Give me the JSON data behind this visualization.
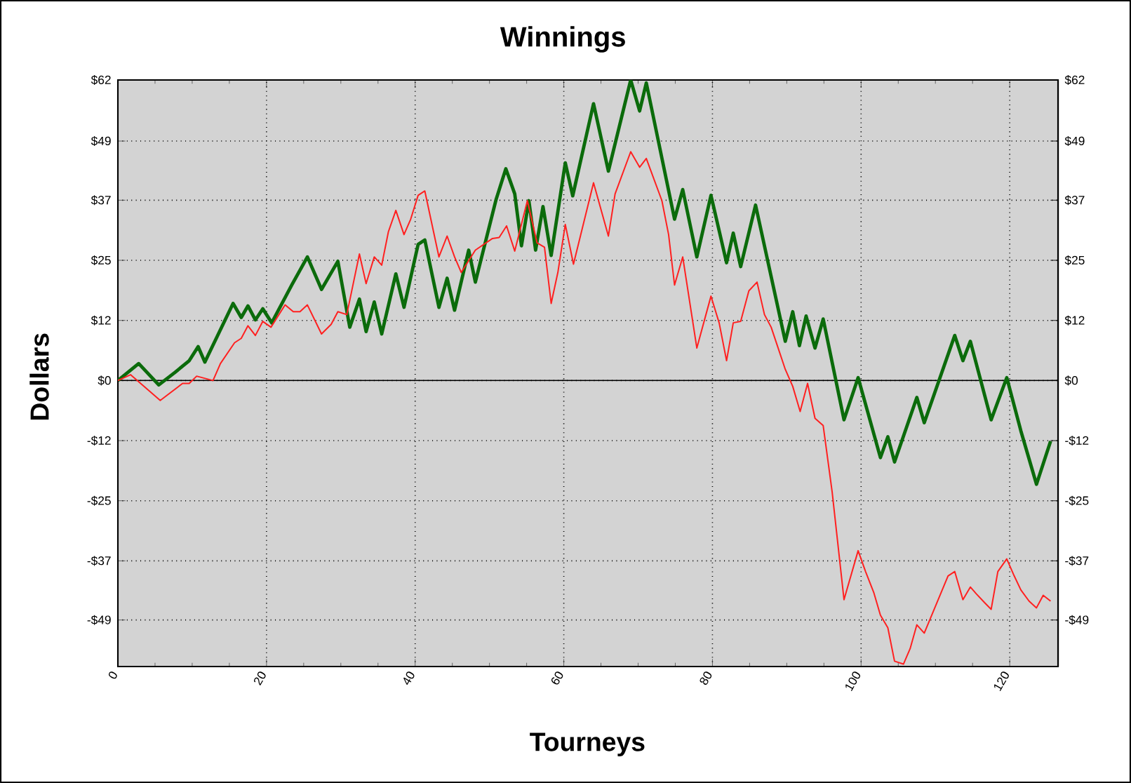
{
  "chart_data": {
    "type": "line",
    "title": "Winnings",
    "xlabel": "Tourneys",
    "ylabel": "Dollars",
    "xlim": [
      0,
      126.5
    ],
    "xticks": [
      0,
      20,
      40,
      60,
      80,
      100,
      120
    ],
    "ylim": [
      -59,
      62
    ],
    "yticks": [
      {
        "value": 62,
        "label": "$62"
      },
      {
        "value": 49.4,
        "label": "$49"
      },
      {
        "value": 37.2,
        "label": "$37"
      },
      {
        "value": 24.8,
        "label": "$25"
      },
      {
        "value": 12.4,
        "label": "$12"
      },
      {
        "value": 0,
        "label": "$0"
      },
      {
        "value": -12.4,
        "label": "-$12"
      },
      {
        "value": -24.8,
        "label": "-$25"
      },
      {
        "value": -37.2,
        "label": "-$37"
      },
      {
        "value": -49.4,
        "label": "-$49"
      }
    ],
    "y2lim": [
      -59,
      62
    ],
    "y2ticks": [
      {
        "value": 62,
        "label": "$62"
      },
      {
        "value": 49.4,
        "label": "$49"
      },
      {
        "value": 37.2,
        "label": "$37"
      },
      {
        "value": 24.8,
        "label": "$25"
      },
      {
        "value": 12.4,
        "label": "$12"
      },
      {
        "value": 0,
        "label": "$0"
      },
      {
        "value": -12.4,
        "label": "-$12"
      },
      {
        "value": -24.8,
        "label": "-$25"
      },
      {
        "value": -37.2,
        "label": "-$37"
      },
      {
        "value": -49.4,
        "label": "-$49"
      }
    ],
    "grid": true,
    "ref_lines": [
      {
        "axis": "y",
        "value": 0,
        "color": "#000000"
      }
    ],
    "series": [
      {
        "color": "#0b6b0b",
        "x": [
          0,
          2.8,
          5.5,
          7.7,
          9.6,
          10.8,
          11.7,
          15.5,
          16.6,
          17.5,
          18.5,
          19.5,
          20.7,
          23.4,
          25.5,
          27.4,
          29.6,
          31.2,
          32.5,
          33.4,
          34.5,
          35.5,
          37.4,
          38.5,
          40.4,
          41.3,
          43.2,
          44.3,
          45.3,
          47.2,
          48.1,
          50.9,
          52.2,
          53.4,
          54.3,
          55.3,
          56.2,
          57.2,
          58.3,
          60.2,
          61.2,
          64,
          66,
          69,
          70.2,
          71.1,
          74.9,
          76,
          77.9,
          79.8,
          81.9,
          82.8,
          83.8,
          85.8,
          89.8,
          90.8,
          91.7,
          92.6,
          93.8,
          94.9,
          97.7,
          99.6,
          102.6,
          103.6,
          104.5,
          107.5,
          108.5,
          112.6,
          113.7,
          114.7,
          117.5,
          119.6,
          121.5,
          123.6,
          125.5
        ],
        "values": [
          0,
          3.5,
          -0.9,
          1.7,
          4.1,
          7.0,
          3.8,
          15.9,
          13.0,
          15.4,
          12.5,
          14.8,
          11.9,
          19.7,
          25.5,
          18.8,
          24.6,
          11,
          16.8,
          10.1,
          16.2,
          9.6,
          22.0,
          15.1,
          28.1,
          29.0,
          15.1,
          21.1,
          14.5,
          26.9,
          20.3,
          37.4,
          43.7,
          38.5,
          27.8,
          37.1,
          26.9,
          35.9,
          25.8,
          44.9,
          38.1,
          57.1,
          43.2,
          62,
          55.6,
          61.4,
          33.3,
          39.4,
          25.5,
          38.2,
          24.3,
          30.4,
          23.5,
          36.2,
          8.1,
          14.2,
          7.2,
          13.3,
          6.7,
          12.7,
          -8.1,
          0.6,
          -15.9,
          -11.6,
          -16.8,
          -3.5,
          -8.7,
          9.3,
          4.1,
          8.1,
          -8.1,
          0.6,
          -10.4,
          -21.4,
          -12.5
        ]
      },
      {
        "color": "#ff2020",
        "x": [
          0,
          1.7,
          5.7,
          8.7,
          9.6,
          10.6,
          12.8,
          13.8,
          15.7,
          16.6,
          17.5,
          18.5,
          19.5,
          20.6,
          22.5,
          23.6,
          24.5,
          25.5,
          27.4,
          28.7,
          29.6,
          30.8,
          32.5,
          33.4,
          34.5,
          35.5,
          36.4,
          37.4,
          38.5,
          39.4,
          40.4,
          41.3,
          43.2,
          44.3,
          45.3,
          46.2,
          48.1,
          50.4,
          51.3,
          52.3,
          53.4,
          55.1,
          56.4,
          57.4,
          58.3,
          59.2,
          60.2,
          61.3,
          64,
          66,
          66.9,
          69,
          70.2,
          71.1,
          73.2,
          74.1,
          74.9,
          76,
          77.9,
          79.8,
          80.9,
          81.9,
          82.8,
          83.8,
          84.9,
          86,
          87,
          87.9,
          89.8,
          90.8,
          91.8,
          92.8,
          93.8,
          94.9,
          96.1,
          97.7,
          99.6,
          100.6,
          101.7,
          102.6,
          103.6,
          104.5,
          105.7,
          106.6,
          107.5,
          108.5,
          111.7,
          112.6,
          113.7,
          114.7,
          115.5,
          116.6,
          117.5,
          118.4,
          119.6,
          120.6,
          121.5,
          122.6,
          123.6,
          124.5,
          125.5
        ],
        "values": [
          0,
          1.2,
          -4.1,
          -0.6,
          -0.6,
          0.9,
          0,
          3.5,
          7.8,
          8.7,
          11.3,
          9.3,
          12.2,
          11,
          15.6,
          14.2,
          14.2,
          15.6,
          9.6,
          11.6,
          14.2,
          13.6,
          26.1,
          20.0,
          25.5,
          23.8,
          30.7,
          35.1,
          30.1,
          33.3,
          38.2,
          39.1,
          25.5,
          29.8,
          25.5,
          22.3,
          26.9,
          29.3,
          29.5,
          31.9,
          26.7,
          37.1,
          28.4,
          27.5,
          15.9,
          22.3,
          32.2,
          24.0,
          40.8,
          29.8,
          38.5,
          47.2,
          44,
          45.8,
          37.1,
          30.1,
          19.7,
          25.5,
          6.7,
          17.4,
          11.9,
          4.1,
          11.9,
          12.2,
          18.5,
          20.3,
          13.6,
          11,
          2.3,
          -1.2,
          -6.4,
          -0.6,
          -7.8,
          -9.3,
          -22.9,
          -45.2,
          -35.1,
          -39.4,
          -43.7,
          -48.4,
          -51,
          -57.9,
          -58.5,
          -55.3,
          -50.4,
          -52.1,
          -40.3,
          -39.4,
          -45.2,
          -42.6,
          -44,
          -45.8,
          -47.2,
          -39.4,
          -36.8,
          -40.3,
          -43.2,
          -45.5,
          -46.9,
          -44.3,
          -45.5
        ]
      }
    ]
  }
}
